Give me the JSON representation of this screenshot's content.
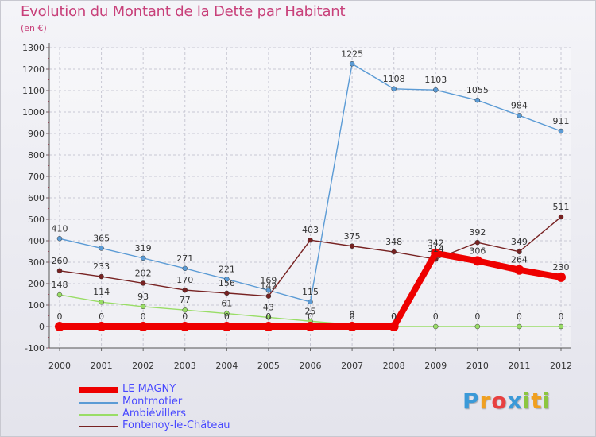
{
  "header": {
    "title": "Evolution du Montant de la Dette par Habitant",
    "unit": "(en €)"
  },
  "logo": {
    "letters": [
      "P",
      "r",
      "o",
      "x",
      "i",
      "t",
      "i"
    ],
    "colors": [
      "#3b9ad8",
      "#f0a020",
      "#e84040",
      "#3b9ad8",
      "#8cc63f",
      "#f0a020",
      "#8cc63f"
    ]
  },
  "chart_data": {
    "type": "line",
    "title": "Evolution du Montant de la Dette par Habitant",
    "unit_label": "(en €)",
    "xlabel": "",
    "ylabel": "",
    "x": [
      "2000",
      "2001",
      "2002",
      "2003",
      "2004",
      "2005",
      "2006",
      "2007",
      "2008",
      "2009",
      "2010",
      "2011",
      "2012"
    ],
    "ylim": [
      -100,
      1300
    ],
    "yticks": [
      "-100",
      "0",
      "100",
      "200",
      "300",
      "400",
      "500",
      "600",
      "700",
      "800",
      "900",
      "1000",
      "1100",
      "1200",
      "1300"
    ],
    "grid": true,
    "legend_position": "bottom-left",
    "series": [
      {
        "name": "LE MAGNY",
        "color": "#ee0000",
        "values": [
          0,
          0,
          0,
          0,
          0,
          0,
          0,
          0,
          0,
          342,
          306,
          264,
          230
        ],
        "labels": [
          "0",
          "0",
          "0",
          "0",
          "0",
          "0",
          "0",
          "0",
          "0",
          "342",
          "306",
          "264",
          "230"
        ]
      },
      {
        "name": "Montmotier",
        "color": "#5b9bd5",
        "values": [
          410,
          365,
          319,
          271,
          221,
          169,
          115,
          1225,
          1108,
          1103,
          1055,
          984,
          911
        ],
        "labels": [
          "410",
          "365",
          "319",
          "271",
          "221",
          "169",
          "115",
          "1225",
          "1108",
          "1103",
          "1055",
          "984",
          "911"
        ]
      },
      {
        "name": "Ambiévillers",
        "color": "#99dd66",
        "values": [
          148,
          114,
          93,
          77,
          61,
          43,
          25,
          9,
          0,
          0,
          0,
          0,
          0
        ],
        "labels": [
          "148",
          "114",
          "93",
          "77",
          "61",
          "43",
          "25",
          "9",
          "0",
          "0",
          "0",
          "0",
          "0"
        ]
      },
      {
        "name": "Fontenoy-le-Château",
        "color": "#772222",
        "values": [
          260,
          233,
          202,
          170,
          156,
          142,
          403,
          375,
          348,
          314,
          392,
          349,
          511
        ],
        "labels": [
          "260",
          "233",
          "202",
          "170",
          "156",
          "142",
          "403",
          "375",
          "348",
          "314",
          "392",
          "349",
          "511"
        ]
      }
    ]
  }
}
